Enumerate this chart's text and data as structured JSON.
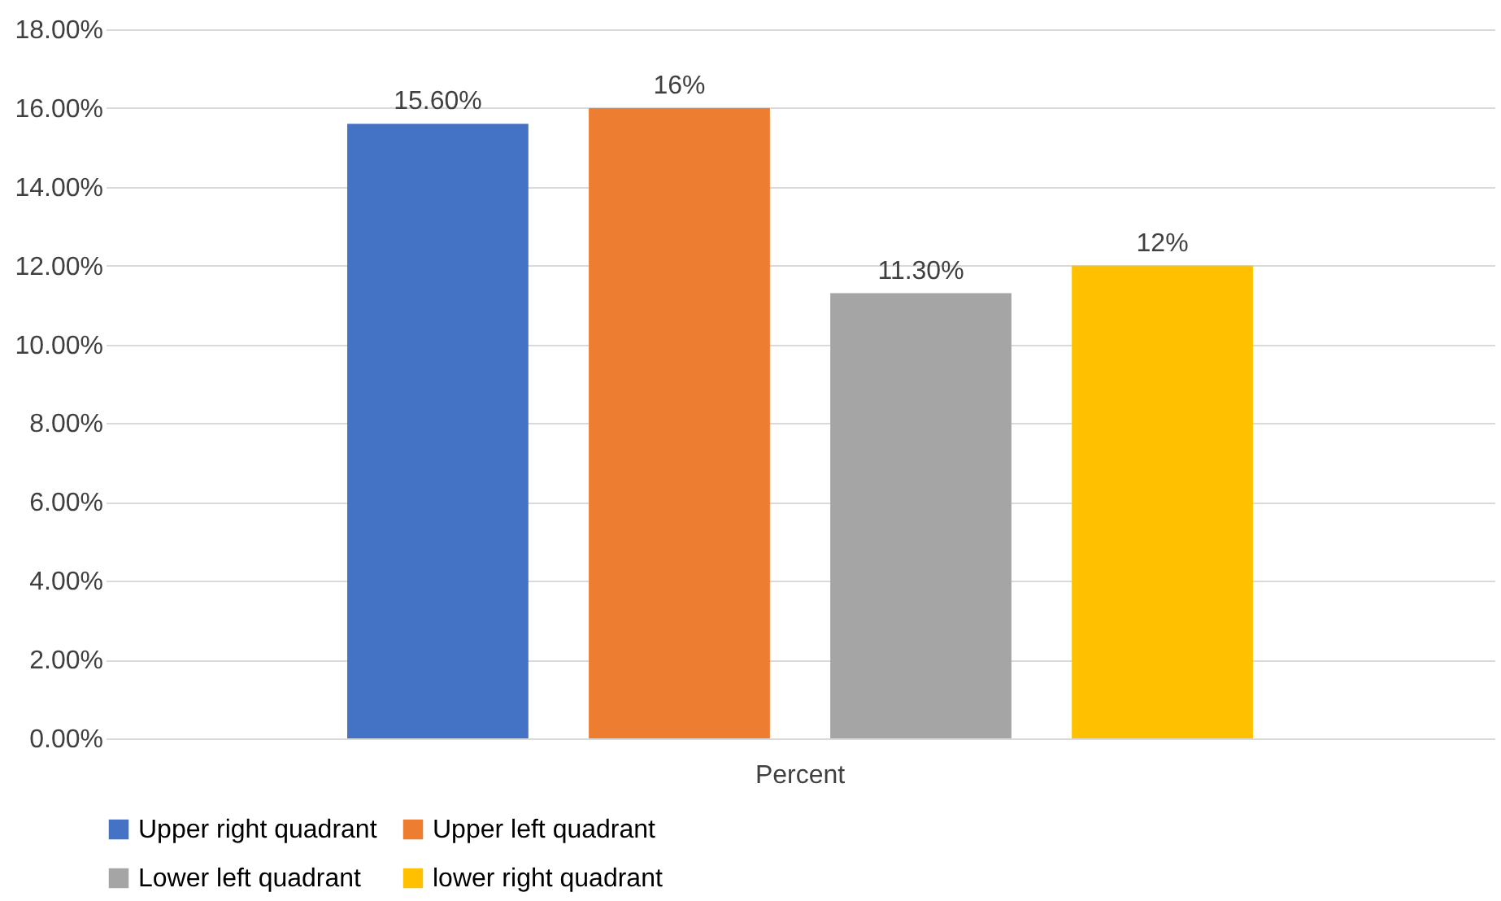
{
  "chart_data": {
    "type": "bar",
    "categories": [
      "Percent"
    ],
    "series": [
      {
        "name": "Upper right quadrant",
        "color": "#4472c4",
        "values": [
          15.6
        ],
        "value_labels": [
          "15.60%"
        ]
      },
      {
        "name": "Upper left quadrant",
        "color": "#ed7d31",
        "values": [
          16
        ],
        "value_labels": [
          "16%"
        ]
      },
      {
        "name": "Lower left quadrant",
        "color": "#a5a5a5",
        "values": [
          11.3
        ],
        "value_labels": [
          "11.30%"
        ]
      },
      {
        "name": "lower right quadrant",
        "color": "#ffc000",
        "values": [
          12
        ],
        "value_labels": [
          "12%"
        ]
      }
    ],
    "ylim": [
      0,
      18
    ],
    "yticks": [
      {
        "value": 0,
        "label": "0.00%"
      },
      {
        "value": 2,
        "label": "2.00%"
      },
      {
        "value": 4,
        "label": "4.00%"
      },
      {
        "value": 6,
        "label": "6.00%"
      },
      {
        "value": 8,
        "label": "8.00%"
      },
      {
        "value": 10,
        "label": "10.00%"
      },
      {
        "value": 12,
        "label": "12.00%"
      },
      {
        "value": 14,
        "label": "14.00%"
      },
      {
        "value": 16,
        "label": "16.00%"
      },
      {
        "value": 18,
        "label": "18.00%"
      }
    ],
    "grid": "y",
    "legend": "bottom"
  }
}
